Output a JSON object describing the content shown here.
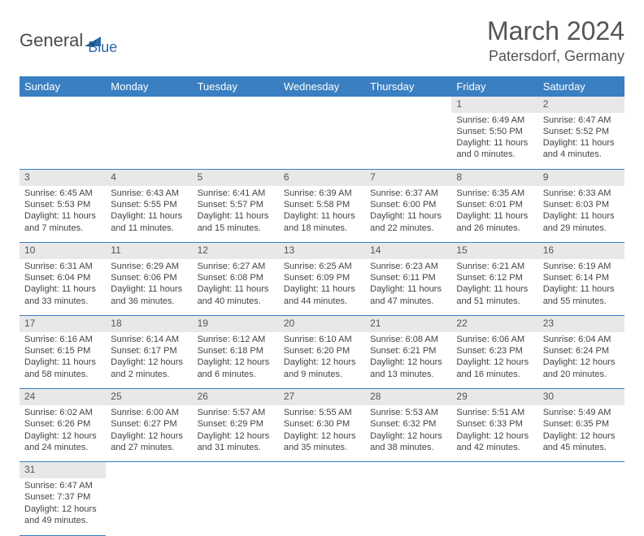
{
  "logo": {
    "text1": "General",
    "text2": "Blue"
  },
  "title": "March 2024",
  "location": "Patersdorf, Germany",
  "colors": {
    "header_bg": "#3a7fc1",
    "header_fg": "#ffffff",
    "daynum_bg": "#e8e8e8",
    "border": "#3a7fc1",
    "text": "#444444",
    "title_color": "#555555",
    "logo_gray": "#4a4a4a",
    "logo_blue": "#2c6aa8"
  },
  "day_headers": [
    "Sunday",
    "Monday",
    "Tuesday",
    "Wednesday",
    "Thursday",
    "Friday",
    "Saturday"
  ],
  "weeks": [
    [
      null,
      null,
      null,
      null,
      null,
      {
        "n": "1",
        "sr": "Sunrise: 6:49 AM",
        "ss": "Sunset: 5:50 PM",
        "dl": "Daylight: 11 hours and 0 minutes."
      },
      {
        "n": "2",
        "sr": "Sunrise: 6:47 AM",
        "ss": "Sunset: 5:52 PM",
        "dl": "Daylight: 11 hours and 4 minutes."
      }
    ],
    [
      {
        "n": "3",
        "sr": "Sunrise: 6:45 AM",
        "ss": "Sunset: 5:53 PM",
        "dl": "Daylight: 11 hours and 7 minutes."
      },
      {
        "n": "4",
        "sr": "Sunrise: 6:43 AM",
        "ss": "Sunset: 5:55 PM",
        "dl": "Daylight: 11 hours and 11 minutes."
      },
      {
        "n": "5",
        "sr": "Sunrise: 6:41 AM",
        "ss": "Sunset: 5:57 PM",
        "dl": "Daylight: 11 hours and 15 minutes."
      },
      {
        "n": "6",
        "sr": "Sunrise: 6:39 AM",
        "ss": "Sunset: 5:58 PM",
        "dl": "Daylight: 11 hours and 18 minutes."
      },
      {
        "n": "7",
        "sr": "Sunrise: 6:37 AM",
        "ss": "Sunset: 6:00 PM",
        "dl": "Daylight: 11 hours and 22 minutes."
      },
      {
        "n": "8",
        "sr": "Sunrise: 6:35 AM",
        "ss": "Sunset: 6:01 PM",
        "dl": "Daylight: 11 hours and 26 minutes."
      },
      {
        "n": "9",
        "sr": "Sunrise: 6:33 AM",
        "ss": "Sunset: 6:03 PM",
        "dl": "Daylight: 11 hours and 29 minutes."
      }
    ],
    [
      {
        "n": "10",
        "sr": "Sunrise: 6:31 AM",
        "ss": "Sunset: 6:04 PM",
        "dl": "Daylight: 11 hours and 33 minutes."
      },
      {
        "n": "11",
        "sr": "Sunrise: 6:29 AM",
        "ss": "Sunset: 6:06 PM",
        "dl": "Daylight: 11 hours and 36 minutes."
      },
      {
        "n": "12",
        "sr": "Sunrise: 6:27 AM",
        "ss": "Sunset: 6:08 PM",
        "dl": "Daylight: 11 hours and 40 minutes."
      },
      {
        "n": "13",
        "sr": "Sunrise: 6:25 AM",
        "ss": "Sunset: 6:09 PM",
        "dl": "Daylight: 11 hours and 44 minutes."
      },
      {
        "n": "14",
        "sr": "Sunrise: 6:23 AM",
        "ss": "Sunset: 6:11 PM",
        "dl": "Daylight: 11 hours and 47 minutes."
      },
      {
        "n": "15",
        "sr": "Sunrise: 6:21 AM",
        "ss": "Sunset: 6:12 PM",
        "dl": "Daylight: 11 hours and 51 minutes."
      },
      {
        "n": "16",
        "sr": "Sunrise: 6:19 AM",
        "ss": "Sunset: 6:14 PM",
        "dl": "Daylight: 11 hours and 55 minutes."
      }
    ],
    [
      {
        "n": "17",
        "sr": "Sunrise: 6:16 AM",
        "ss": "Sunset: 6:15 PM",
        "dl": "Daylight: 11 hours and 58 minutes."
      },
      {
        "n": "18",
        "sr": "Sunrise: 6:14 AM",
        "ss": "Sunset: 6:17 PM",
        "dl": "Daylight: 12 hours and 2 minutes."
      },
      {
        "n": "19",
        "sr": "Sunrise: 6:12 AM",
        "ss": "Sunset: 6:18 PM",
        "dl": "Daylight: 12 hours and 6 minutes."
      },
      {
        "n": "20",
        "sr": "Sunrise: 6:10 AM",
        "ss": "Sunset: 6:20 PM",
        "dl": "Daylight: 12 hours and 9 minutes."
      },
      {
        "n": "21",
        "sr": "Sunrise: 6:08 AM",
        "ss": "Sunset: 6:21 PM",
        "dl": "Daylight: 12 hours and 13 minutes."
      },
      {
        "n": "22",
        "sr": "Sunrise: 6:06 AM",
        "ss": "Sunset: 6:23 PM",
        "dl": "Daylight: 12 hours and 16 minutes."
      },
      {
        "n": "23",
        "sr": "Sunrise: 6:04 AM",
        "ss": "Sunset: 6:24 PM",
        "dl": "Daylight: 12 hours and 20 minutes."
      }
    ],
    [
      {
        "n": "24",
        "sr": "Sunrise: 6:02 AM",
        "ss": "Sunset: 6:26 PM",
        "dl": "Daylight: 12 hours and 24 minutes."
      },
      {
        "n": "25",
        "sr": "Sunrise: 6:00 AM",
        "ss": "Sunset: 6:27 PM",
        "dl": "Daylight: 12 hours and 27 minutes."
      },
      {
        "n": "26",
        "sr": "Sunrise: 5:57 AM",
        "ss": "Sunset: 6:29 PM",
        "dl": "Daylight: 12 hours and 31 minutes."
      },
      {
        "n": "27",
        "sr": "Sunrise: 5:55 AM",
        "ss": "Sunset: 6:30 PM",
        "dl": "Daylight: 12 hours and 35 minutes."
      },
      {
        "n": "28",
        "sr": "Sunrise: 5:53 AM",
        "ss": "Sunset: 6:32 PM",
        "dl": "Daylight: 12 hours and 38 minutes."
      },
      {
        "n": "29",
        "sr": "Sunrise: 5:51 AM",
        "ss": "Sunset: 6:33 PM",
        "dl": "Daylight: 12 hours and 42 minutes."
      },
      {
        "n": "30",
        "sr": "Sunrise: 5:49 AM",
        "ss": "Sunset: 6:35 PM",
        "dl": "Daylight: 12 hours and 45 minutes."
      }
    ],
    [
      {
        "n": "31",
        "sr": "Sunrise: 6:47 AM",
        "ss": "Sunset: 7:37 PM",
        "dl": "Daylight: 12 hours and 49 minutes."
      },
      null,
      null,
      null,
      null,
      null,
      null
    ]
  ]
}
